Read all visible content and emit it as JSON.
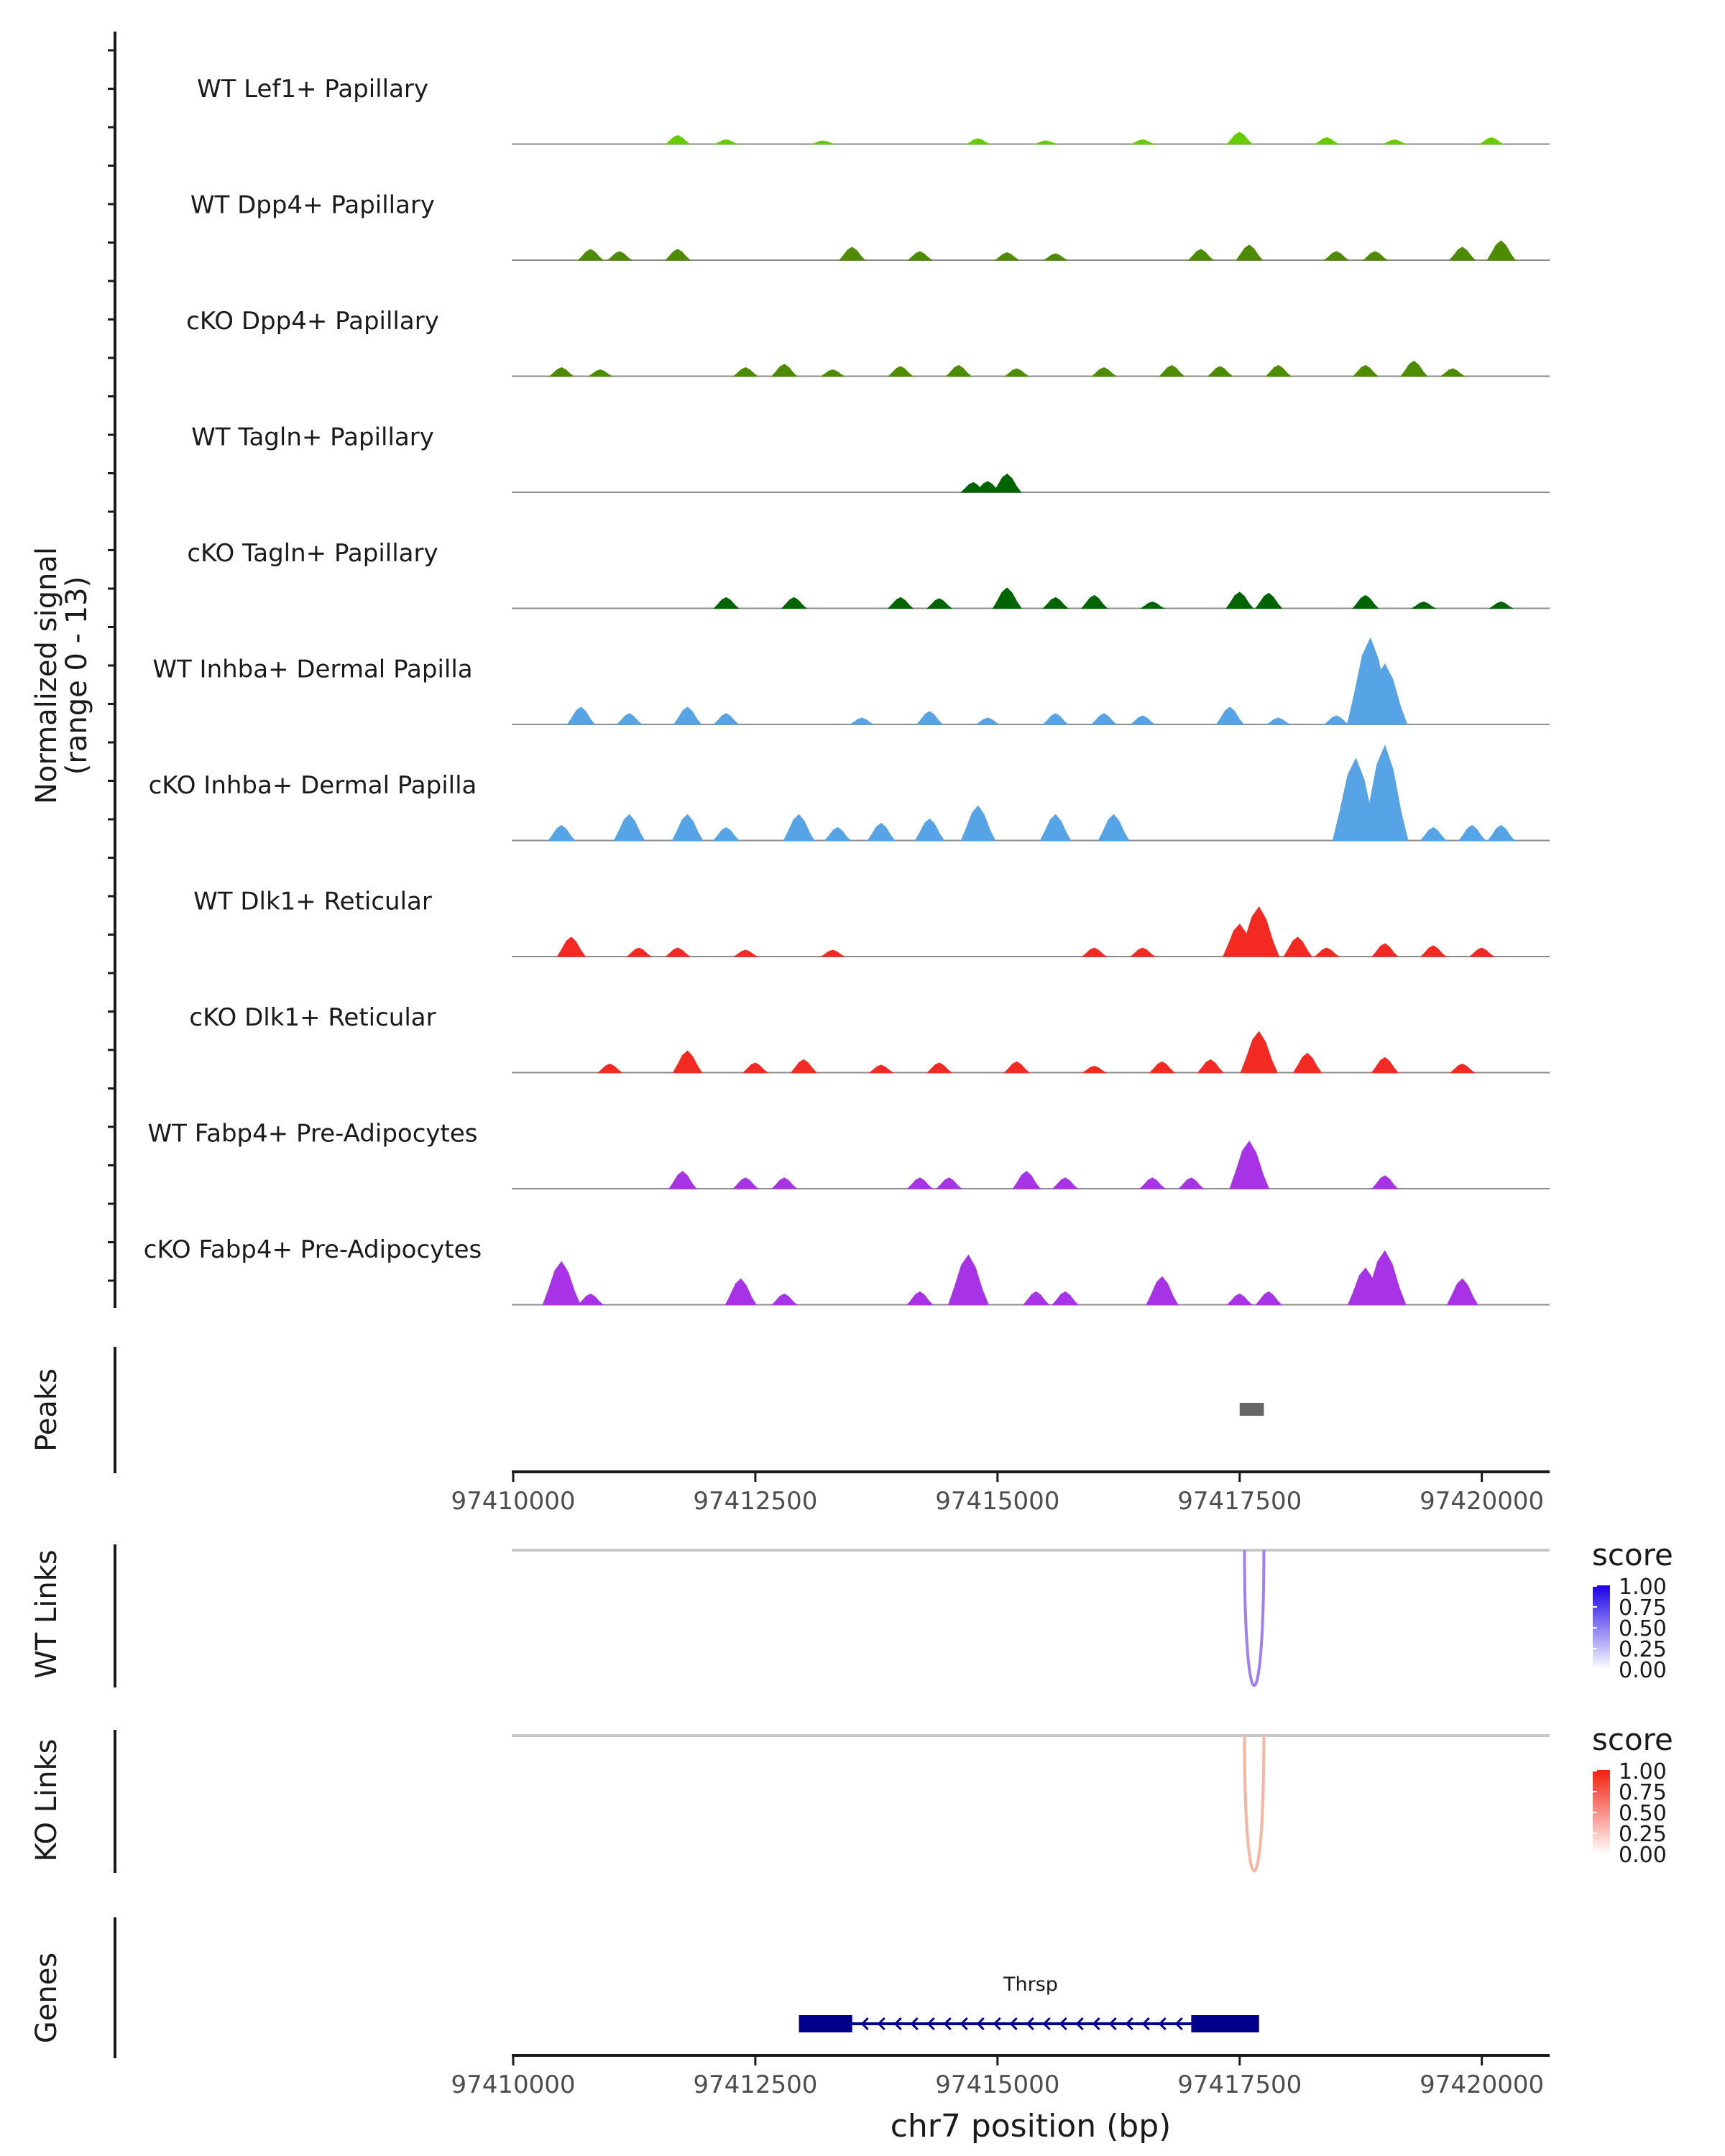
{
  "chart_data": {
    "type": "genome-browser",
    "region": "chr7:97410000-97420000",
    "xlim": [
      97410000,
      97420700
    ],
    "xlabel": "chr7 position (bp)",
    "x_ticks": [
      "97410000",
      "97412500",
      "97415000",
      "97417500",
      "97420000"
    ],
    "x_tick_values": [
      97410000,
      97412500,
      97415000,
      97417500,
      97420000
    ],
    "coverage_ylabel_line1": "Normalized signal",
    "coverage_ylabel_line2": "(range 0 - 13)",
    "signal_range": [
      0,
      13
    ],
    "tracks": [
      {
        "name": "WT Lef1+ Papillary",
        "color": "#66cc00",
        "peaks": [
          [
            97411700,
            0.4
          ],
          [
            97412200,
            0.2
          ],
          [
            97413200,
            0.15
          ],
          [
            97414800,
            0.25
          ],
          [
            97415500,
            0.15
          ],
          [
            97416500,
            0.2
          ],
          [
            97417500,
            0.55
          ],
          [
            97418400,
            0.3
          ],
          [
            97419100,
            0.2
          ],
          [
            97420100,
            0.3
          ]
        ]
      },
      {
        "name": "WT Dpp4+ Papillary",
        "color": "#4d8c00",
        "peaks": [
          [
            97410800,
            0.5
          ],
          [
            97411100,
            0.4
          ],
          [
            97411700,
            0.5
          ],
          [
            97413500,
            0.6
          ],
          [
            97414200,
            0.4
          ],
          [
            97415100,
            0.35
          ],
          [
            97415600,
            0.3
          ],
          [
            97417100,
            0.5
          ],
          [
            97417600,
            0.7
          ],
          [
            97418500,
            0.4
          ],
          [
            97418900,
            0.4
          ],
          [
            97419800,
            0.6
          ],
          [
            97420200,
            0.9
          ]
        ]
      },
      {
        "name": "cKO Dpp4+ Papillary",
        "color": "#4d8c00",
        "peaks": [
          [
            97410500,
            0.4
          ],
          [
            97410900,
            0.3
          ],
          [
            97412400,
            0.4
          ],
          [
            97412800,
            0.55
          ],
          [
            97413300,
            0.3
          ],
          [
            97414000,
            0.45
          ],
          [
            97414600,
            0.5
          ],
          [
            97415200,
            0.35
          ],
          [
            97416100,
            0.4
          ],
          [
            97416800,
            0.5
          ],
          [
            97417300,
            0.45
          ],
          [
            97417900,
            0.5
          ],
          [
            97418800,
            0.5
          ],
          [
            97419300,
            0.7
          ],
          [
            97419700,
            0.35
          ]
        ]
      },
      {
        "name": "WT Tagln+ Papillary",
        "color": "#006400",
        "peaks": [
          [
            97414750,
            0.45
          ],
          [
            97414900,
            0.5
          ],
          [
            97415100,
            0.85
          ]
        ]
      },
      {
        "name": "cKO Tagln+ Papillary",
        "color": "#006400",
        "peaks": [
          [
            97412200,
            0.5
          ],
          [
            97412900,
            0.5
          ],
          [
            97414000,
            0.5
          ],
          [
            97414400,
            0.45
          ],
          [
            97415100,
            0.95
          ],
          [
            97415600,
            0.5
          ],
          [
            97416000,
            0.6
          ],
          [
            97416600,
            0.3
          ],
          [
            97417500,
            0.75
          ],
          [
            97417800,
            0.7
          ],
          [
            97418800,
            0.6
          ],
          [
            97419400,
            0.3
          ],
          [
            97420200,
            0.3
          ]
        ]
      },
      {
        "name": "WT Inhba+ Dermal Papilla",
        "color": "#56a3e6",
        "peaks": [
          [
            97410700,
            0.8
          ],
          [
            97411200,
            0.5
          ],
          [
            97411800,
            0.8
          ],
          [
            97412200,
            0.5
          ],
          [
            97413600,
            0.3
          ],
          [
            97414300,
            0.6
          ],
          [
            97414900,
            0.3
          ],
          [
            97415600,
            0.5
          ],
          [
            97416100,
            0.5
          ],
          [
            97416500,
            0.4
          ],
          [
            97417400,
            0.8
          ],
          [
            97417900,
            0.3
          ],
          [
            97418500,
            0.4
          ],
          [
            97418850,
            4.0
          ],
          [
            97419000,
            2.8
          ]
        ]
      },
      {
        "name": "cKO Inhba+ Dermal Papilla",
        "color": "#56a3e6",
        "peaks": [
          [
            97410500,
            0.7
          ],
          [
            97411200,
            1.2
          ],
          [
            97411800,
            1.2
          ],
          [
            97412200,
            0.6
          ],
          [
            97412950,
            1.2
          ],
          [
            97413350,
            0.6
          ],
          [
            97413800,
            0.8
          ],
          [
            97414300,
            1.0
          ],
          [
            97414800,
            1.6
          ],
          [
            97415600,
            1.2
          ],
          [
            97416200,
            1.2
          ],
          [
            97418700,
            3.8
          ],
          [
            97419000,
            4.4
          ],
          [
            97419500,
            0.6
          ],
          [
            97419900,
            0.7
          ],
          [
            97420200,
            0.7
          ]
        ]
      },
      {
        "name": "WT Dlk1+ Reticular",
        "color": "#f22a22",
        "peaks": [
          [
            97410600,
            0.9
          ],
          [
            97411300,
            0.4
          ],
          [
            97411700,
            0.4
          ],
          [
            97412400,
            0.3
          ],
          [
            97413300,
            0.3
          ],
          [
            97416000,
            0.4
          ],
          [
            97416500,
            0.4
          ],
          [
            97417500,
            1.5
          ],
          [
            97417700,
            2.3
          ],
          [
            97418100,
            0.9
          ],
          [
            97418400,
            0.4
          ],
          [
            97419000,
            0.6
          ],
          [
            97419500,
            0.5
          ],
          [
            97420000,
            0.4
          ]
        ]
      },
      {
        "name": "cKO Dlk1+ Reticular",
        "color": "#f22a22",
        "peaks": [
          [
            97411000,
            0.4
          ],
          [
            97411800,
            1.0
          ],
          [
            97412500,
            0.45
          ],
          [
            97413000,
            0.6
          ],
          [
            97413800,
            0.35
          ],
          [
            97414400,
            0.45
          ],
          [
            97415200,
            0.5
          ],
          [
            97416000,
            0.3
          ],
          [
            97416700,
            0.5
          ],
          [
            97417200,
            0.6
          ],
          [
            97417700,
            1.9
          ],
          [
            97418200,
            0.9
          ],
          [
            97419000,
            0.7
          ],
          [
            97419800,
            0.4
          ]
        ]
      },
      {
        "name": "WT Fabp4+ Pre-Adipocytes",
        "color": "#a832e6",
        "peaks": [
          [
            97411750,
            0.8
          ],
          [
            97412400,
            0.5
          ],
          [
            97412800,
            0.5
          ],
          [
            97414200,
            0.5
          ],
          [
            97414500,
            0.5
          ],
          [
            97415300,
            0.8
          ],
          [
            97415700,
            0.5
          ],
          [
            97416600,
            0.5
          ],
          [
            97417000,
            0.5
          ],
          [
            97417600,
            2.2
          ],
          [
            97419000,
            0.6
          ]
        ]
      },
      {
        "name": "cKO Fabp4+ Pre-Adipocytes",
        "color": "#a832e6",
        "peaks": [
          [
            97410500,
            2.0
          ],
          [
            97410800,
            0.5
          ],
          [
            97412350,
            1.2
          ],
          [
            97412800,
            0.5
          ],
          [
            97414200,
            0.6
          ],
          [
            97414700,
            2.3
          ],
          [
            97415400,
            0.6
          ],
          [
            97415700,
            0.6
          ],
          [
            97416700,
            1.3
          ],
          [
            97417500,
            0.5
          ],
          [
            97417800,
            0.6
          ],
          [
            97418800,
            1.7
          ],
          [
            97419000,
            2.5
          ],
          [
            97419800,
            1.2
          ]
        ]
      }
    ],
    "peaks_panel": {
      "label": "Peaks",
      "regions": [
        [
          97417500,
          97417750
        ]
      ]
    },
    "wt_links": {
      "label": "WT Links",
      "anchor_start": 97417550,
      "anchor_end": 97417750,
      "score": 0.5,
      "color": "#a07ef5"
    },
    "ko_links": {
      "label": "KO Links",
      "anchor_start": 97417550,
      "anchor_end": 97417750,
      "score": 0.35,
      "color": "#f7b49e"
    },
    "legends": [
      {
        "title": "score",
        "ticks": [
          "1.00",
          "0.75",
          "0.50",
          "0.25",
          "0.00"
        ],
        "high_color": "#1a00e6",
        "low_color": "#ffffff"
      },
      {
        "title": "score",
        "ticks": [
          "1.00",
          "0.75",
          "0.50",
          "0.25",
          "0.00"
        ],
        "high_color": "#f21f0f",
        "low_color": "#ffffff"
      }
    ],
    "genes_panel": {
      "label": "Genes",
      "gene": "Thrsp",
      "start": 97412950,
      "end": 97417700,
      "thick_left_end": 97413500,
      "thick_right_start": 97417000,
      "strand": "-",
      "color": "#00008b"
    }
  }
}
